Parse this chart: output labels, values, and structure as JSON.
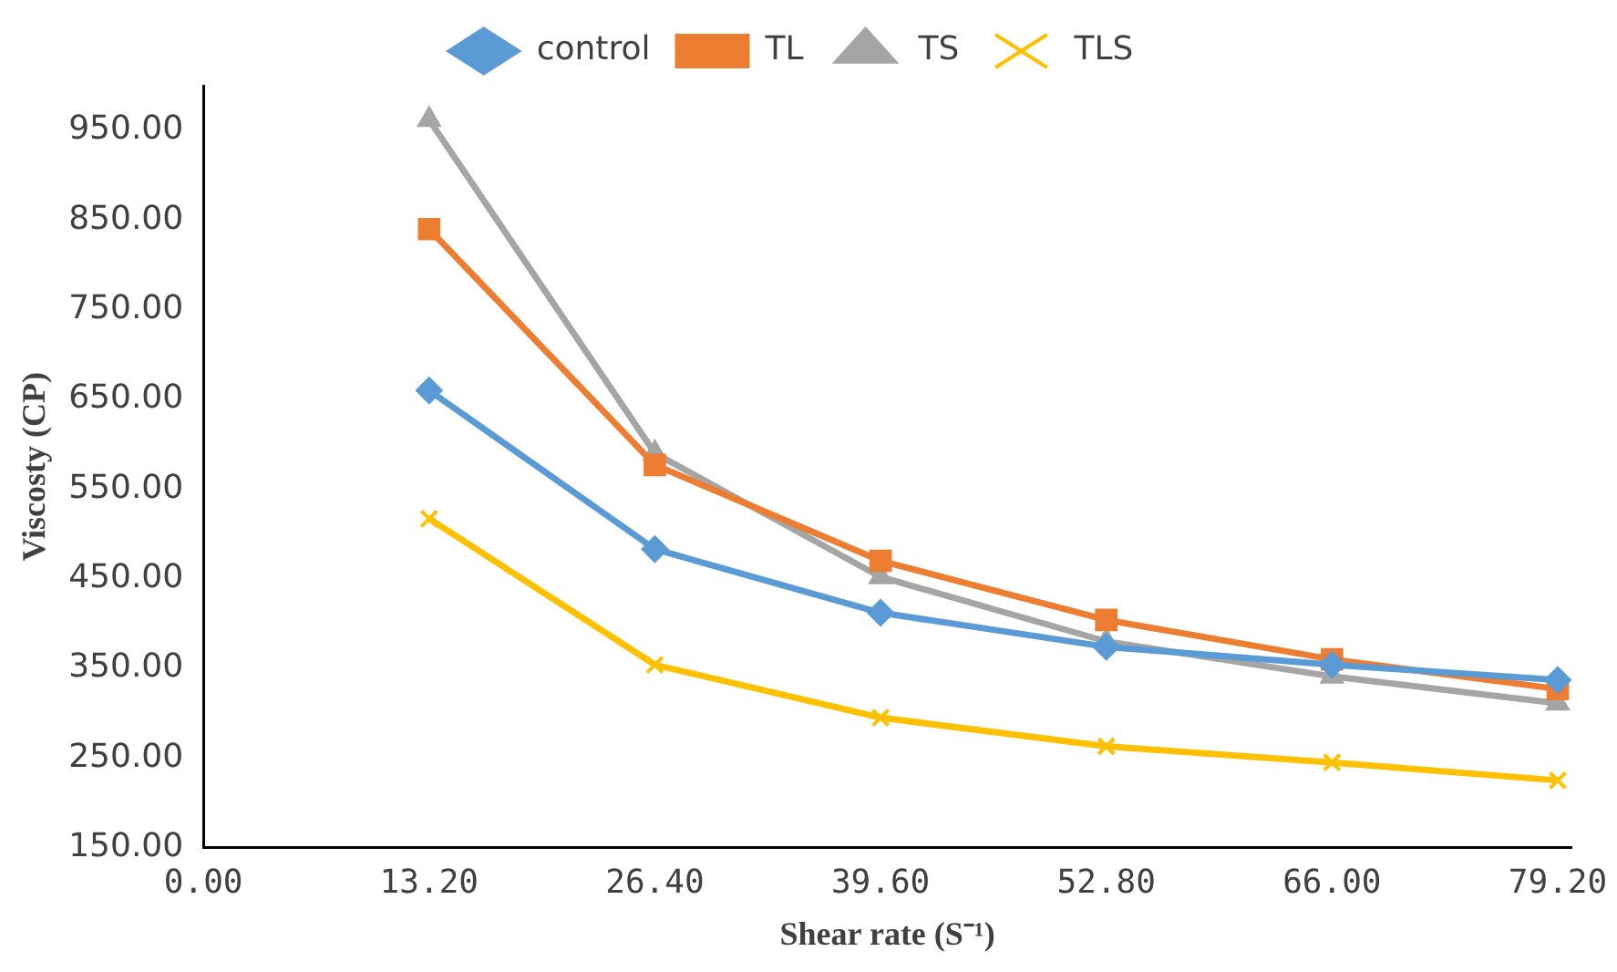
{
  "chart_data": {
    "type": "line",
    "xlabel": "Shear rate (S⁻¹)",
    "ylabel": "Viscosty (CP)",
    "legend": "top",
    "grid": false,
    "x": [
      13.2,
      26.4,
      39.6,
      52.8,
      66,
      79.2
    ],
    "xlim": [
      0,
      80
    ],
    "xticks": [
      {
        "value": 0,
        "label": "0.00"
      },
      {
        "value": 13.2,
        "label": "13.20"
      },
      {
        "value": 26.4,
        "label": "26.40"
      },
      {
        "value": 39.6,
        "label": "39.60"
      },
      {
        "value": 52.8,
        "label": "52.80"
      },
      {
        "value": 66,
        "label": "66.00"
      },
      {
        "value": 79.2,
        "label": "79.20"
      }
    ],
    "ylim": [
      150,
      1000
    ],
    "yticks": [
      {
        "value": 150,
        "label": "150.00"
      },
      {
        "value": 250,
        "label": "250.00"
      },
      {
        "value": 350,
        "label": "350.00"
      },
      {
        "value": 450,
        "label": "450.00"
      },
      {
        "value": 550,
        "label": "550.00"
      },
      {
        "value": 650,
        "label": "650.00"
      },
      {
        "value": 750,
        "label": "750.00"
      },
      {
        "value": 850,
        "label": "850.00"
      },
      {
        "value": 950,
        "label": "950.00"
      }
    ],
    "series": [
      {
        "name": "control",
        "color": "#5b9bd5",
        "marker": "diamond",
        "values": [
          660,
          483,
          412,
          374,
          354,
          337
        ]
      },
      {
        "name": "TL",
        "color": "#ed7d31",
        "marker": "square",
        "values": [
          840,
          577,
          470,
          404,
          360,
          327
        ]
      },
      {
        "name": "TS",
        "color": "#a5a5a5",
        "marker": "triangle",
        "values": [
          962,
          590,
          452,
          380,
          341,
          311
        ]
      },
      {
        "name": "TLS",
        "color": "#ffc000",
        "marker": "cross",
        "values": [
          517,
          354,
          295,
          263,
          245,
          225
        ]
      }
    ]
  }
}
